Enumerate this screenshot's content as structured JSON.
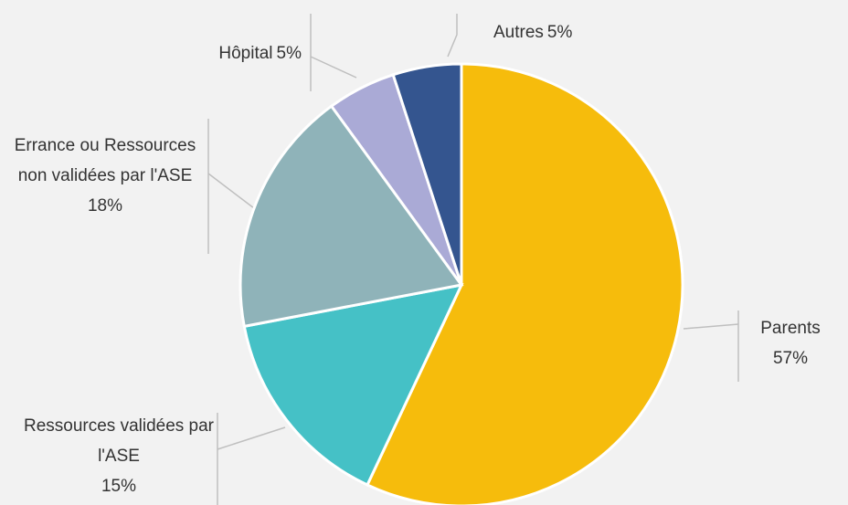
{
  "chart_data": {
    "type": "pie",
    "categories": [
      "Parents",
      "Ressources validées par l'ASE",
      "Errance ou Ressources non validées par l'ASE",
      "Hôpital",
      "Autres"
    ],
    "values": [
      57,
      15,
      18,
      5,
      5
    ],
    "value_labels": [
      "57%",
      "15%",
      "18%",
      "5%",
      "5%"
    ],
    "colors": [
      "#f6bc0c",
      "#45c1c6",
      "#8fb3b9",
      "#aaaad6",
      "#34558f"
    ]
  }
}
